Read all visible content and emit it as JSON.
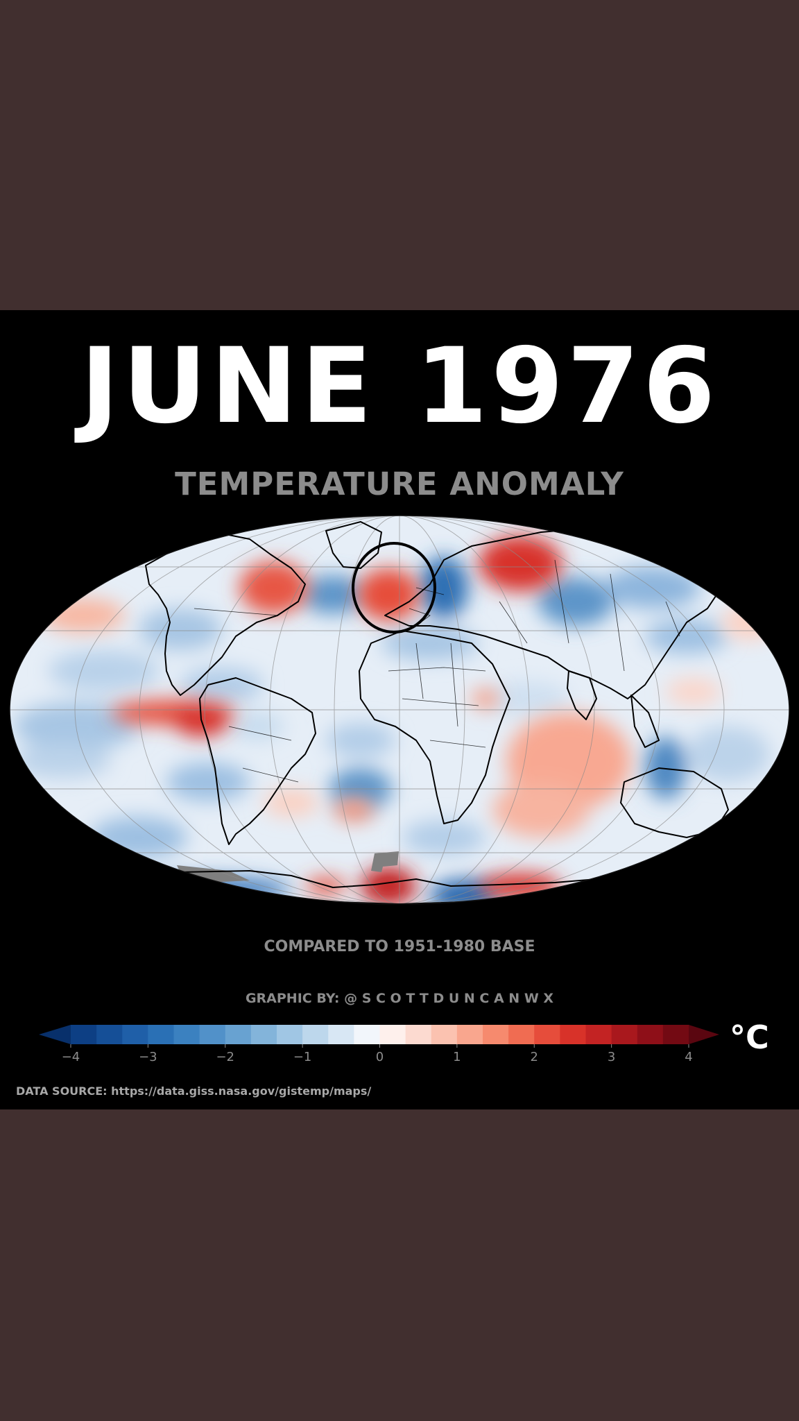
{
  "title": "JUNE 1976",
  "subtitle": "TEMPERATURE ANOMALY",
  "compared": "COMPARED TO 1951-1980 BASE",
  "credit": "GRAPHIC BY: @ S C O T T D U N C A N W X",
  "unit": "°C",
  "source": "DATA SOURCE: https://data.giss.nasa.gov/gistemp/maps/",
  "map": {
    "projection": "Mollweide",
    "highlight": "Europe (circled)"
  },
  "colorbar": {
    "min": -4,
    "max": 4,
    "ticks": [
      -4,
      -3,
      -2,
      -1,
      0,
      1,
      2,
      3,
      4
    ],
    "tick_labels": [
      "−4",
      "−3",
      "−2",
      "−1",
      "0",
      "1",
      "2",
      "3",
      "4"
    ],
    "colors": [
      "#08306b",
      "#0d3f84",
      "#154f97",
      "#1f5fa8",
      "#2a70b5",
      "#3b81c0",
      "#5191c9",
      "#68a2d1",
      "#83b4da",
      "#a0c6e4",
      "#bdd7ec",
      "#d8e7f4",
      "#f2f6fb",
      "#fef0ec",
      "#fcdad0",
      "#fbc2b0",
      "#f9a68e",
      "#f68a6e",
      "#f06c52",
      "#e64d3b",
      "#d83229",
      "#c32323",
      "#a9181d",
      "#8e0f18",
      "#730a13",
      "#5a0610"
    ]
  },
  "colors": {
    "background": "#412f2f",
    "panel": "#000000",
    "title": "#ffffff",
    "secondary_text": "#8c8c8c"
  }
}
